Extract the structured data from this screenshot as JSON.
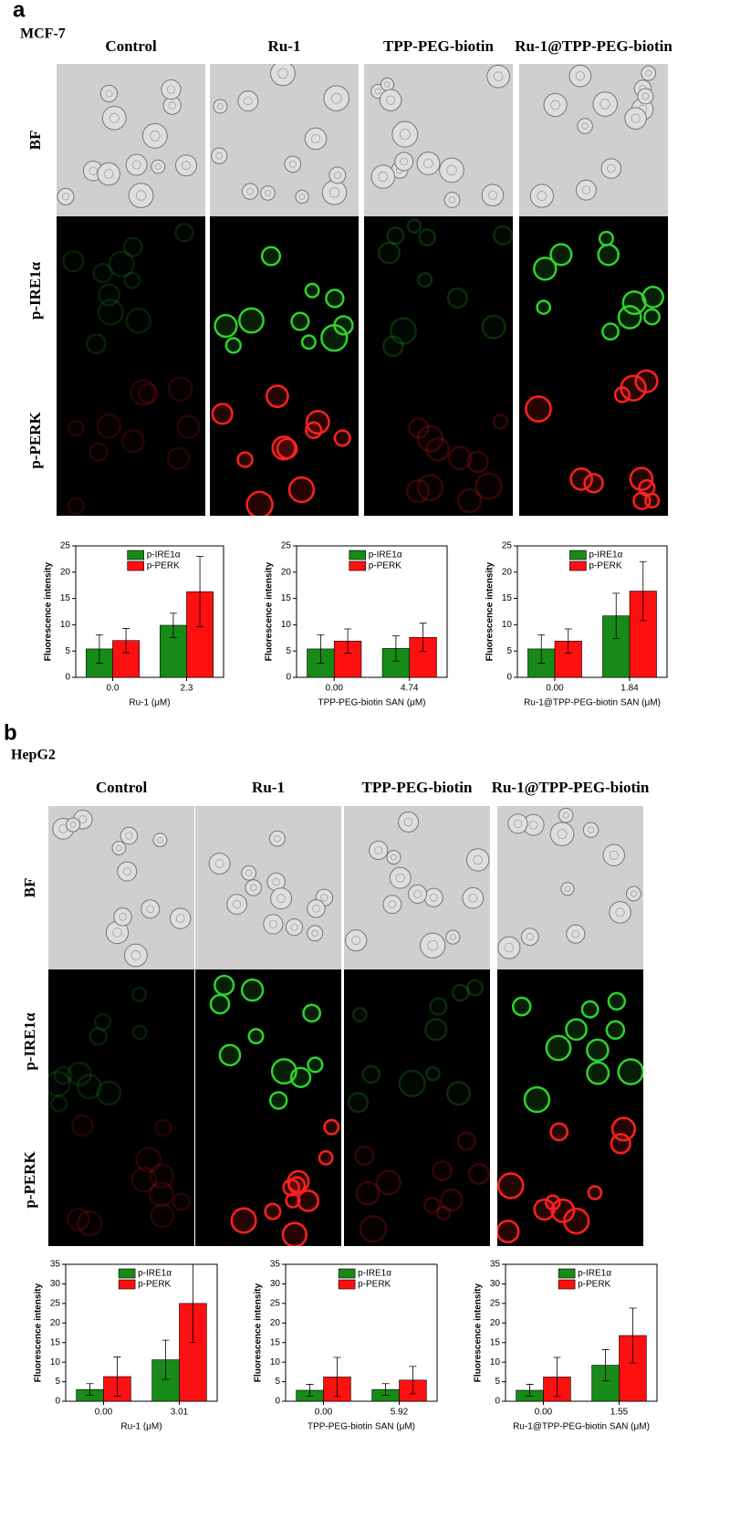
{
  "panels": [
    {
      "letter": "a",
      "cell_line": "MCF-7",
      "columns": [
        "Control",
        "Ru-1",
        "TPP-PEG-biotin",
        "Ru-1@TPP-PEG-biotin"
      ],
      "rows": [
        "BF",
        "p-IRE1α",
        "p-PERK"
      ]
    },
    {
      "letter": "b",
      "cell_line": "HepG2",
      "columns": [
        "Control",
        "Ru-1",
        "TPP-PEG-biotin",
        "Ru-1@TPP-PEG-biotin"
      ],
      "rows": [
        "BF",
        "p-IRE1α",
        "p-PERK"
      ]
    }
  ],
  "chart_data": [
    {
      "type": "bar",
      "ylabel": "Fluorescence intensity",
      "xlabel": "Ru-1 (μM)",
      "categories": [
        "0.0",
        "2.3"
      ],
      "legend": "top",
      "series": [
        {
          "name": "p-IRE1α",
          "color": "#178a17",
          "values": [
            5.4,
            9.9
          ],
          "errors": [
            2.7,
            2.3
          ]
        },
        {
          "name": "p-PERK",
          "color": "#ff1010",
          "values": [
            7.0,
            16.3
          ],
          "errors": [
            2.3,
            6.7
          ]
        }
      ],
      "ylim": [
        0,
        25
      ],
      "yticks": [
        0,
        5,
        10,
        15,
        20,
        25
      ]
    },
    {
      "type": "bar",
      "ylabel": "Fluorescence intensity",
      "xlabel": "TPP-PEG-biotin SAN (μM)",
      "categories": [
        "0.00",
        "4.74"
      ],
      "legend": "top",
      "series": [
        {
          "name": "p-IRE1α",
          "color": "#178a17",
          "values": [
            5.4,
            5.5
          ],
          "errors": [
            2.7,
            2.4
          ]
        },
        {
          "name": "p-PERK",
          "color": "#ff1010",
          "values": [
            6.9,
            7.6
          ],
          "errors": [
            2.3,
            2.7
          ]
        }
      ],
      "ylim": [
        0,
        25
      ],
      "yticks": [
        0,
        5,
        10,
        15,
        20,
        25
      ]
    },
    {
      "type": "bar",
      "ylabel": "Fluorescence intensity",
      "xlabel": "Ru-1@TPP-PEG-biotin SAN (μM)",
      "categories": [
        "0.00",
        "1.84"
      ],
      "legend": "top",
      "series": [
        {
          "name": "p-IRE1α",
          "color": "#178a17",
          "values": [
            5.4,
            11.7
          ],
          "errors": [
            2.7,
            4.3
          ]
        },
        {
          "name": "p-PERK",
          "color": "#ff1010",
          "values": [
            6.9,
            16.4
          ],
          "errors": [
            2.3,
            5.6
          ]
        }
      ],
      "ylim": [
        0,
        25
      ],
      "yticks": [
        0,
        5,
        10,
        15,
        20,
        25
      ]
    },
    {
      "type": "bar",
      "ylabel": "Fluorescence intensity",
      "xlabel": "Ru-1 (μM)",
      "categories": [
        "0.00",
        "3.01"
      ],
      "legend": "top",
      "series": [
        {
          "name": "p-IRE1α",
          "color": "#178a17",
          "values": [
            3.0,
            10.6
          ],
          "errors": [
            1.5,
            5.0
          ]
        },
        {
          "name": "p-PERK",
          "color": "#ff1010",
          "values": [
            6.3,
            25.0
          ],
          "errors": [
            5.0,
            10.0
          ]
        }
      ],
      "ylim": [
        0,
        35
      ],
      "yticks": [
        0,
        5,
        10,
        15,
        20,
        25,
        30,
        35
      ]
    },
    {
      "type": "bar",
      "ylabel": "Fluorescence intensity",
      "xlabel": "TPP-PEG-biotin SAN (μM)",
      "categories": [
        "0.00",
        "5.92"
      ],
      "legend": "top",
      "series": [
        {
          "name": "p-IRE1α",
          "color": "#178a17",
          "values": [
            2.8,
            3.0
          ],
          "errors": [
            1.5,
            1.5
          ]
        },
        {
          "name": "p-PERK",
          "color": "#ff1010",
          "values": [
            6.2,
            5.4
          ],
          "errors": [
            5.0,
            3.5
          ]
        }
      ],
      "ylim": [
        0,
        35
      ],
      "yticks": [
        0,
        5,
        10,
        15,
        20,
        25,
        30,
        35
      ]
    },
    {
      "type": "bar",
      "ylabel": "Fluorescence intensity",
      "xlabel": "Ru-1@TPP-PEG-biotin SAN (μM)",
      "categories": [
        "0.00",
        "1.55"
      ],
      "legend": "top",
      "series": [
        {
          "name": "p-IRE1α",
          "color": "#178a17",
          "values": [
            2.8,
            9.2
          ],
          "errors": [
            1.5,
            4.0
          ]
        },
        {
          "name": "p-PERK",
          "color": "#ff1010",
          "values": [
            6.2,
            16.8
          ],
          "errors": [
            5.0,
            7.0
          ]
        }
      ],
      "ylim": [
        0,
        35
      ],
      "yticks": [
        0,
        5,
        10,
        15,
        20,
        25,
        30,
        35
      ]
    }
  ]
}
